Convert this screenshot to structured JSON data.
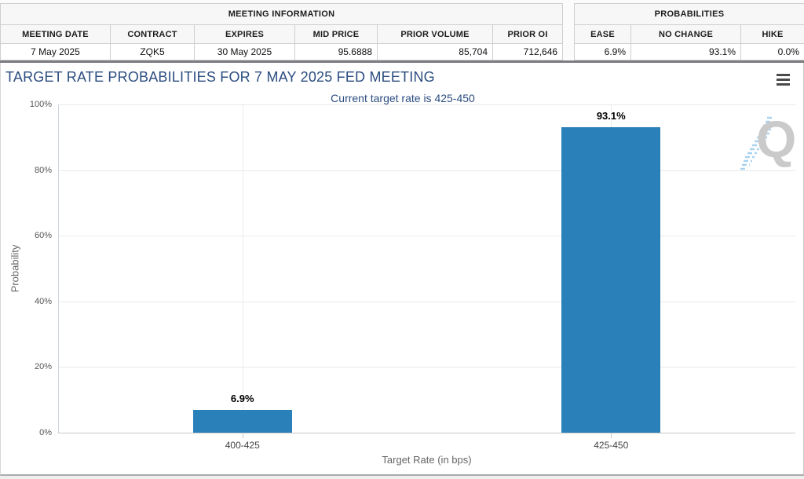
{
  "meeting_info_table": {
    "title": "MEETING INFORMATION",
    "columns": [
      "MEETING DATE",
      "CONTRACT",
      "EXPIRES",
      "MID PRICE",
      "PRIOR VOLUME",
      "PRIOR OI"
    ],
    "row": [
      "7 May 2025",
      "ZQK5",
      "30 May 2025",
      "95.6888",
      "85,704",
      "712,646"
    ]
  },
  "probabilities_table": {
    "title": "PROBABILITIES",
    "columns": [
      "EASE",
      "NO CHANGE",
      "HIKE"
    ],
    "row": [
      "6.9%",
      "93.1%",
      "0.0%"
    ]
  },
  "chart": {
    "title": "TARGET RATE PROBABILITIES FOR 7 MAY 2025 FED MEETING",
    "subtitle": "Current target rate is 425-450",
    "menu_icon": "hamburger-icon",
    "watermark_letter": "Q"
  },
  "chart_data": {
    "type": "bar",
    "categories": [
      "400-425",
      "425-450"
    ],
    "values": [
      6.9,
      93.1
    ],
    "value_labels": [
      "6.9%",
      "93.1%"
    ],
    "title": "TARGET RATE PROBABILITIES FOR 7 MAY 2025 FED MEETING",
    "subtitle": "Current target rate is 425-450",
    "xlabel": "Target Rate (in bps)",
    "ylabel": "Probability",
    "ylim": [
      0,
      100
    ],
    "ytick_step": 20,
    "ytick_labels": [
      "0%",
      "20%",
      "40%",
      "60%",
      "80%",
      "100%"
    ],
    "bar_color": "#2a80b9",
    "grid": true,
    "legend": "none"
  },
  "colors": {
    "bar": "#2a80b9",
    "title_navy": "#2c4d80",
    "divider_gray": "#7b7d80",
    "watermark_gray": "#cacaca",
    "watermark_blue": "#a9d2ef"
  }
}
